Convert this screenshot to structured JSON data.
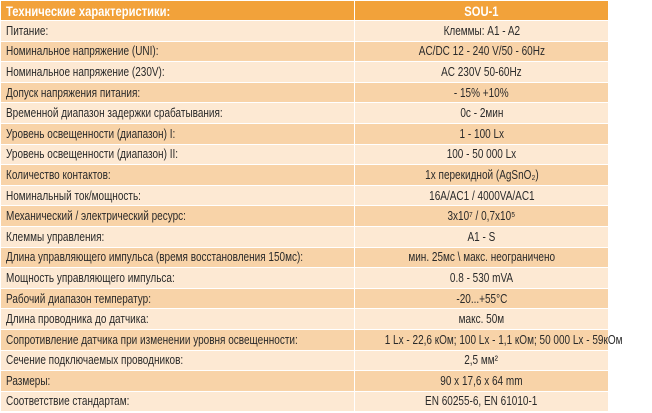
{
  "table": {
    "header": [
      "Технические характеристики:",
      "SOU-1"
    ],
    "rows": [
      [
        "Питание:",
        "Клеммы: A1 - A2"
      ],
      [
        "Номинальное напряжение (UNI):",
        "AC/DC 12 - 240 V/50 - 60Hz"
      ],
      [
        "Номинальное напряжение (230V):",
        "AC 230V 50-60Hz"
      ],
      [
        "Допуск напряжения питания:",
        "- 15% +10%"
      ],
      [
        "Временной диапазон задержки срабатывания:",
        "0с - 2мин"
      ],
      [
        "Уровень освещенности (диапазон) I:",
        "1 - 100 Lx"
      ],
      [
        "Уровень освещенности (диапазон) II:",
        "100 - 50 000 Lx"
      ],
      [
        "Количество контактов:",
        "1х перекидной (AgSnO₂)"
      ],
      [
        "Номинальный ток/мощность:",
        "16A/AC1 / 4000VA/AC1"
      ],
      [
        "Механический / электрический ресурс:",
        "3x10⁷ / 0,7x10⁵"
      ],
      [
        "Клеммы управления:",
        "A1 - S"
      ],
      [
        "Длина управляющего импульса (время восстановления 150мс):",
        "мин. 25мс \\ макс. неограничено"
      ],
      [
        "Мощность управляющего импульса:",
        "0.8 - 530 mVA"
      ],
      [
        "Рабочий диапазон температур:",
        "-20...+55°C"
      ],
      [
        "Длина проводника до датчика:",
        "макс. 50м"
      ],
      [
        "Сопротивление датчика при изменении уровня освещенности:",
        "1 Lx - 22,6 кОм; 100 Lx - 1,1 кОм; 50 000 Lx - 59кОм"
      ],
      [
        "Сечение подключаемых проводников:",
        "2,5 мм²"
      ],
      [
        "Размеры:",
        "90 x 17,6 x 64 mm"
      ],
      [
        "Соответствие стандартам:",
        "EN 60255-6, EN 61010-1"
      ]
    ]
  }
}
